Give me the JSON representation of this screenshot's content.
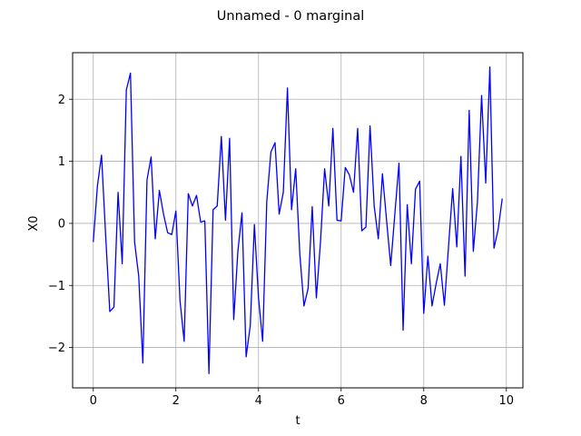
{
  "chart_data": {
    "type": "line",
    "title": "Unnamed - 0 marginal",
    "xlabel": "t",
    "ylabel": "X0",
    "xlim": [
      -0.5,
      10.4
    ],
    "ylim": [
      -2.65,
      2.75
    ],
    "xticks": [
      0,
      2,
      4,
      6,
      8,
      10
    ],
    "yticks": [
      -2,
      -1,
      0,
      1,
      2
    ],
    "grid": true,
    "line_color": "#0000ff",
    "grid_color": "#b0b0b0",
    "series": [
      {
        "name": "",
        "x": [
          0.0,
          0.1,
          0.2,
          0.3,
          0.4,
          0.5,
          0.6,
          0.7,
          0.8,
          0.9,
          1.0,
          1.1,
          1.2,
          1.3,
          1.4,
          1.5,
          1.6,
          1.7,
          1.8,
          1.9,
          2.0,
          2.1,
          2.2,
          2.3,
          2.4,
          2.5,
          2.6,
          2.7,
          2.8,
          2.9,
          3.0,
          3.1,
          3.2,
          3.3,
          3.4,
          3.5,
          3.6,
          3.7,
          3.8,
          3.9,
          4.0,
          4.1,
          4.2,
          4.3,
          4.4,
          4.5,
          4.6,
          4.7,
          4.8,
          4.9,
          5.0,
          5.1,
          5.2,
          5.3,
          5.4,
          5.5,
          5.6,
          5.7,
          5.8,
          5.9,
          6.0,
          6.1,
          6.2,
          6.3,
          6.4,
          6.5,
          6.6,
          6.7,
          6.8,
          6.9,
          7.0,
          7.1,
          7.2,
          7.3,
          7.4,
          7.5,
          7.6,
          7.7,
          7.8,
          7.9,
          8.0,
          8.1,
          8.2,
          8.3,
          8.4,
          8.5,
          8.6,
          8.7,
          8.8,
          8.9,
          9.0,
          9.1,
          9.2,
          9.3,
          9.4,
          9.5,
          9.6,
          9.7,
          9.8,
          9.9
        ],
        "values": [
          -0.3,
          0.6,
          1.1,
          -0.2,
          -1.42,
          -1.35,
          0.5,
          -0.65,
          2.15,
          2.42,
          -0.3,
          -0.85,
          -2.25,
          0.7,
          1.07,
          -0.25,
          0.53,
          0.15,
          -0.15,
          -0.18,
          0.2,
          -1.25,
          -1.9,
          0.48,
          0.28,
          0.45,
          0.02,
          0.04,
          -2.42,
          0.22,
          0.28,
          1.4,
          0.05,
          1.37,
          -1.55,
          -0.45,
          0.17,
          -2.15,
          -1.65,
          -0.02,
          -1.2,
          -1.9,
          0.35,
          1.15,
          1.3,
          0.15,
          0.5,
          2.18,
          0.22,
          0.88,
          -0.5,
          -1.33,
          -1.05,
          0.27,
          -1.2,
          -0.3,
          0.88,
          0.28,
          1.53,
          0.05,
          0.04,
          0.9,
          0.78,
          0.5,
          1.53,
          -0.12,
          -0.06,
          1.57,
          0.28,
          -0.25,
          0.8,
          0.05,
          -0.68,
          0.15,
          0.97,
          -1.72,
          0.3,
          -0.65,
          0.55,
          0.68,
          -1.45,
          -0.53,
          -1.33,
          -0.97,
          -0.65,
          -1.32,
          -0.37,
          0.56,
          -0.38,
          1.08,
          -0.85,
          1.82,
          -0.45,
          0.35,
          2.06,
          0.65,
          2.52,
          -0.4,
          -0.1,
          0.4
        ]
      }
    ]
  }
}
